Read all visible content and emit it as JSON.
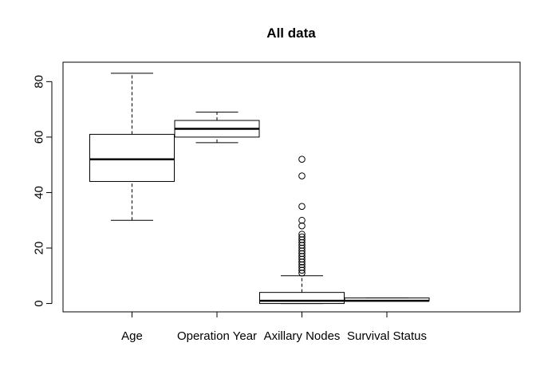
{
  "chart_data": {
    "type": "boxplot",
    "title": "All data",
    "xlabel": "",
    "ylabel": "",
    "ylim": [
      -3,
      87
    ],
    "yticks": [
      0,
      20,
      40,
      60,
      80
    ],
    "grid": false,
    "legend": "none",
    "categories": [
      "Age",
      "Operation Year",
      "Axillary Nodes",
      "Survival Status"
    ],
    "boxes": [
      {
        "category": "Age",
        "min": 30,
        "q1": 44,
        "median": 52,
        "q3": 61,
        "max": 83,
        "outliers": []
      },
      {
        "category": "Operation Year",
        "min": 58,
        "q1": 60,
        "median": 63,
        "q3": 66,
        "max": 69,
        "outliers": []
      },
      {
        "category": "Axillary Nodes",
        "min": 0,
        "q1": 0,
        "median": 1,
        "q3": 4,
        "max": 10,
        "outliers": [
          11,
          12,
          13,
          14,
          15,
          16,
          17,
          18,
          19,
          20,
          21,
          22,
          23,
          24,
          25,
          28,
          30,
          35,
          46,
          52
        ]
      },
      {
        "category": "Survival Status",
        "min": 1,
        "q1": 1,
        "median": 1,
        "q3": 2,
        "max": 2,
        "outliers": []
      }
    ]
  }
}
